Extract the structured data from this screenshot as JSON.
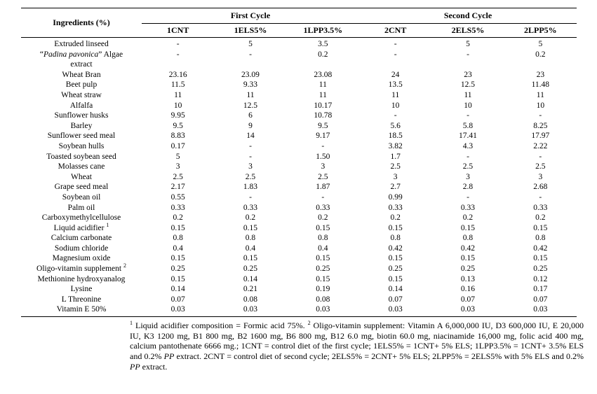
{
  "table": {
    "ingredients_header": "Ingredients (%)",
    "cycle_groups": [
      {
        "label": "First Cycle"
      },
      {
        "label": "Second Cycle"
      }
    ],
    "columns": [
      "1CNT",
      "1ELS5%",
      "1LPP3.5%",
      "2CNT",
      "2ELS5%",
      "2LPP5%"
    ],
    "rows": [
      {
        "label": "Extruded linseed",
        "values": [
          "-",
          "5",
          "3.5",
          "-",
          "5",
          "5"
        ]
      },
      {
        "label_pre": "“",
        "label_italic": "Padina pavonica",
        "label_post": "” Algae",
        "label_line2": "extract",
        "values": [
          "-",
          "-",
          "0.2",
          "-",
          "-",
          "0.2"
        ]
      },
      {
        "label": "Wheat Bran",
        "values": [
          "23.16",
          "23.09",
          "23.08",
          "24",
          "23",
          "23"
        ]
      },
      {
        "label": "Beet pulp",
        "values": [
          "11.5",
          "9.33",
          "11",
          "13.5",
          "12.5",
          "11.48"
        ]
      },
      {
        "label": "Wheat straw",
        "values": [
          "11",
          "11",
          "11",
          "11",
          "11",
          "11"
        ]
      },
      {
        "label": "Alfalfa",
        "values": [
          "10",
          "12.5",
          "10.17",
          "10",
          "10",
          "10"
        ]
      },
      {
        "label": "Sunflower husks",
        "values": [
          "9.95",
          "6",
          "10.78",
          "-",
          "-",
          "-"
        ]
      },
      {
        "label": "Barley",
        "values": [
          "9.5",
          "9",
          "9.5",
          "5.6",
          "5.8",
          "8.25"
        ]
      },
      {
        "label": "Sunflower seed meal",
        "values": [
          "8.83",
          "14",
          "9.17",
          "18.5",
          "17.41",
          "17.97"
        ]
      },
      {
        "label": "Soybean hulls",
        "values": [
          "0.17",
          "-",
          "-",
          "3.82",
          "4.3",
          "2.22"
        ]
      },
      {
        "label": "Toasted soybean seed",
        "values": [
          "5",
          "-",
          "1.50",
          "1.7",
          "-",
          "-"
        ]
      },
      {
        "label": "Molasses cane",
        "values": [
          "3",
          "3",
          "3",
          "2.5",
          "2.5",
          "2.5"
        ]
      },
      {
        "label": "Wheat",
        "values": [
          "2.5",
          "2.5",
          "2.5",
          "3",
          "3",
          "3"
        ]
      },
      {
        "label": "Grape seed meal",
        "values": [
          "2.17",
          "1.83",
          "1.87",
          "2.7",
          "2.8",
          "2.68"
        ]
      },
      {
        "label": "Soybean oil",
        "values": [
          "0.55",
          "-",
          "-",
          "0.99",
          "-",
          "-"
        ]
      },
      {
        "label": "Palm oil",
        "values": [
          "0.33",
          "0.33",
          "0.33",
          "0.33",
          "0.33",
          "0.33"
        ]
      },
      {
        "label": "Carboxymethylcellulose",
        "values": [
          "0.2",
          "0.2",
          "0.2",
          "0.2",
          "0.2",
          "0.2"
        ]
      },
      {
        "label": "Liquid acidifier",
        "sup": "1",
        "values": [
          "0.15",
          "0.15",
          "0.15",
          "0.15",
          "0.15",
          "0.15"
        ]
      },
      {
        "label": "Calcium carbonate",
        "values": [
          "0.8",
          "0.8",
          "0.8",
          "0.8",
          "0.8",
          "0.8"
        ]
      },
      {
        "label": "Sodium chloride",
        "values": [
          "0.4",
          "0.4",
          "0.4",
          "0.42",
          "0.42",
          "0.42"
        ]
      },
      {
        "label": "Magnesium oxide",
        "values": [
          "0.15",
          "0.15",
          "0.15",
          "0.15",
          "0.15",
          "0.15"
        ]
      },
      {
        "label": "Oligo-vitamin supplement",
        "sup": "2",
        "values": [
          "0.25",
          "0.25",
          "0.25",
          "0.25",
          "0.25",
          "0.25"
        ]
      },
      {
        "label": "Methionine hydroxyanalog",
        "values": [
          "0.15",
          "0.14",
          "0.15",
          "0.15",
          "0.13",
          "0.12"
        ]
      },
      {
        "label": "Lysine",
        "values": [
          "0.14",
          "0.21",
          "0.19",
          "0.14",
          "0.16",
          "0.17"
        ]
      },
      {
        "label": "L Threonine",
        "values": [
          "0.07",
          "0.08",
          "0.08",
          "0.07",
          "0.07",
          "0.07"
        ]
      },
      {
        "label": "Vitamin E 50%",
        "values": [
          "0.03",
          "0.03",
          "0.03",
          "0.03",
          "0.03",
          "0.03"
        ]
      }
    ]
  },
  "footnote": {
    "sup1": "1",
    "text1": "Liquid acidifier composition = Formic acid 75%.",
    "sup2": "2",
    "text2": "Oligo-vitamin supplement: Vitamin A 6,000,000 IU, D3 600,000 IU, E 20,000 IU, K3 1200 mg, B1 800 mg, B2 1600 mg, B6 800 mg, B12 6.0 mg, biotin 60.0 mg, niacinamide 16,000 mg, folic acid 400 mg, calcium pantothenate 6666 mg.; 1CNT = control diet of the first cycle; 1ELS5% = 1CNT+ 5% ELS; 1LPP3.5% = 1CNT+ 3.5% ELS and 0.2%",
    "pp1": "PP",
    "text3": "extract. 2CNT = control diet of second cycle; 2ELS5% = 2CNT+ 5% ELS; 2LPP5% = 2ELS5% with 5% ELS and 0.2%",
    "pp2": "PP",
    "text4": "extract."
  }
}
